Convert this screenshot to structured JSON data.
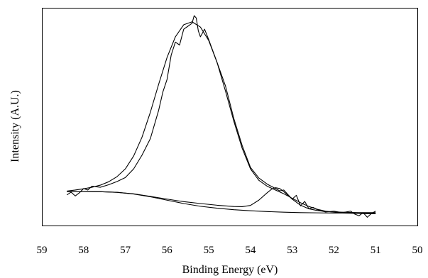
{
  "chart_data": {
    "type": "line",
    "xlabel": "Binding Energy (eV)",
    "ylabel": "Intensity (A.U.)",
    "xlim": [
      59,
      50
    ],
    "x_reversed": true,
    "ylim": [
      0,
      1
    ],
    "y_ticks_shown": false,
    "grid": false,
    "legend": "none",
    "xticks": [
      59,
      58,
      57,
      56,
      55,
      54,
      53,
      52,
      51,
      50
    ],
    "series": [
      {
        "x": [
          58.4,
          58.2,
          58.0,
          57.8,
          57.6,
          57.4,
          57.2,
          57.0,
          56.8,
          56.6,
          56.4,
          56.2,
          56.0,
          55.8,
          55.6,
          55.4,
          55.2,
          55.0,
          54.8,
          54.6,
          54.4,
          54.2,
          54.0,
          53.8,
          53.6,
          53.4,
          53.2,
          53.0,
          52.8,
          52.6,
          52.4,
          52.2,
          52.0,
          51.8,
          51.6,
          51.4,
          51.2,
          51.0
        ],
        "values": [
          0.163,
          0.168,
          0.174,
          0.181,
          0.191,
          0.207,
          0.231,
          0.268,
          0.329,
          0.418,
          0.536,
          0.669,
          0.795,
          0.893,
          0.95,
          0.964,
          0.939,
          0.875,
          0.771,
          0.637,
          0.494,
          0.366,
          0.268,
          0.214,
          0.186,
          0.168,
          0.15,
          0.129,
          0.108,
          0.09,
          0.077,
          0.068,
          0.063,
          0.059,
          0.058,
          0.057,
          0.056,
          0.056
        ]
      },
      {
        "x": [
          58.4,
          58.3,
          58.2,
          58.1,
          58.0,
          57.9,
          57.8,
          57.6,
          57.4,
          57.2,
          57.0,
          56.8,
          56.6,
          56.4,
          56.2,
          56.1,
          56.0,
          55.9,
          55.8,
          55.7,
          55.6,
          55.5,
          55.4,
          55.35,
          55.3,
          55.25,
          55.2,
          55.1,
          55.0,
          54.8,
          54.6,
          54.4,
          54.2,
          54.0,
          53.8,
          53.6,
          53.4,
          53.3,
          53.2,
          53.1,
          53.0,
          52.9,
          52.8,
          52.7,
          52.6,
          52.5,
          52.4,
          52.2,
          52.0,
          51.8,
          51.6,
          51.5,
          51.4,
          51.3,
          51.2,
          51.1,
          51.0
        ],
        "values": [
          0.145,
          0.158,
          0.14,
          0.155,
          0.175,
          0.168,
          0.186,
          0.181,
          0.193,
          0.208,
          0.227,
          0.268,
          0.333,
          0.411,
          0.546,
          0.632,
          0.691,
          0.807,
          0.868,
          0.854,
          0.929,
          0.943,
          0.957,
          0.993,
          0.982,
          0.921,
          0.893,
          0.929,
          0.879,
          0.771,
          0.661,
          0.507,
          0.379,
          0.275,
          0.225,
          0.196,
          0.175,
          0.164,
          0.168,
          0.146,
          0.125,
          0.143,
          0.093,
          0.114,
          0.079,
          0.086,
          0.075,
          0.064,
          0.068,
          0.061,
          0.068,
          0.054,
          0.046,
          0.061,
          0.039,
          0.057,
          0.068
        ]
      },
      {
        "x": [
          58.4,
          58.0,
          57.6,
          57.2,
          56.8,
          56.4,
          56.0,
          55.6,
          55.2,
          54.8,
          54.4,
          54.2,
          54.0,
          53.8,
          53.6,
          53.5,
          53.4,
          53.3,
          53.2,
          53.0,
          52.8,
          52.6,
          52.4,
          52.2,
          52.0,
          51.8,
          51.6,
          51.4,
          51.2,
          51.0
        ],
        "values": [
          0.161,
          0.161,
          0.16,
          0.157,
          0.15,
          0.138,
          0.125,
          0.113,
          0.104,
          0.096,
          0.09,
          0.089,
          0.095,
          0.12,
          0.155,
          0.171,
          0.179,
          0.175,
          0.16,
          0.125,
          0.096,
          0.079,
          0.071,
          0.066,
          0.064,
          0.063,
          0.062,
          0.061,
          0.061,
          0.061
        ]
      },
      {
        "x": [
          58.4,
          58.0,
          57.6,
          57.2,
          56.8,
          56.4,
          56.0,
          55.6,
          55.2,
          54.8,
          54.4,
          54.0,
          53.6,
          53.2,
          52.8,
          52.4,
          52.0,
          51.6,
          51.2,
          51.0
        ],
        "values": [
          0.161,
          0.161,
          0.16,
          0.157,
          0.149,
          0.136,
          0.12,
          0.104,
          0.091,
          0.082,
          0.075,
          0.07,
          0.066,
          0.063,
          0.061,
          0.06,
          0.059,
          0.059,
          0.059,
          0.059
        ]
      }
    ]
  }
}
